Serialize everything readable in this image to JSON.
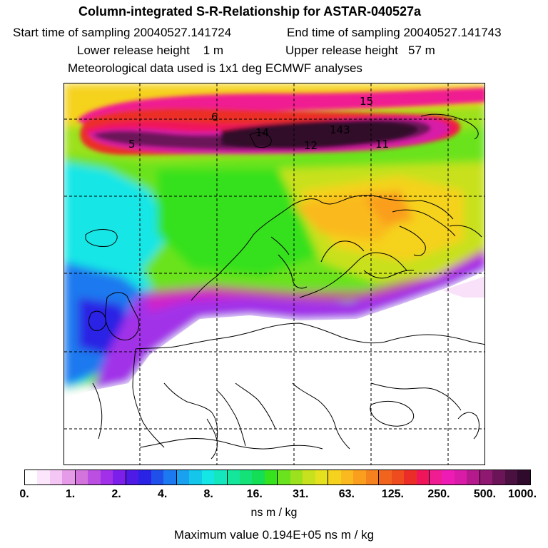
{
  "header": {
    "title": "Column-integrated S-R-Relationship for ASTAR-040527a",
    "start_label": "Start time of sampling 20040527.141724",
    "end_label": "End time of sampling 20040527.141743",
    "lower_label": "Lower release height    1 m",
    "upper_label": "Upper release height   57 m",
    "met_label": "Meteorological data used is 1x1 deg ECMWF analyses"
  },
  "map": {
    "contour_labels": [
      "15",
      "6",
      "14",
      "143",
      "5",
      "12",
      "11"
    ]
  },
  "colorbar": {
    "tick_labels": [
      "0.",
      "1.",
      "2.",
      "4.",
      "8.",
      "16.",
      "31.",
      "63.",
      "125.",
      "250.",
      "500.",
      "1000."
    ],
    "colors": [
      "#ffffff",
      "#fbe6fb",
      "#f4c6f4",
      "#e69be8",
      "#d374dd",
      "#bb4fe2",
      "#a230e8",
      "#7d1fea",
      "#4f19e6",
      "#2a22e4",
      "#1f50ea",
      "#1d79ef",
      "#19a1f0",
      "#14c6ea",
      "#14e6e6",
      "#14e6be",
      "#14e69b",
      "#14e278",
      "#14de55",
      "#36e11e",
      "#6ae31e",
      "#9ce11e",
      "#c8e11e",
      "#e6e11e",
      "#f5d21e",
      "#fab91e",
      "#fa9e1e",
      "#f5821e",
      "#f0641e",
      "#ee4b1e",
      "#eb2d28",
      "#f0145a",
      "#f01c92",
      "#ee1cb4",
      "#d81ca8",
      "#b41a8c",
      "#8f1870",
      "#6b1458",
      "#4a1040",
      "#300a2c"
    ],
    "unit": "ns m / kg",
    "max_value": "Maximum value  0.194E+05 ns m / kg"
  }
}
